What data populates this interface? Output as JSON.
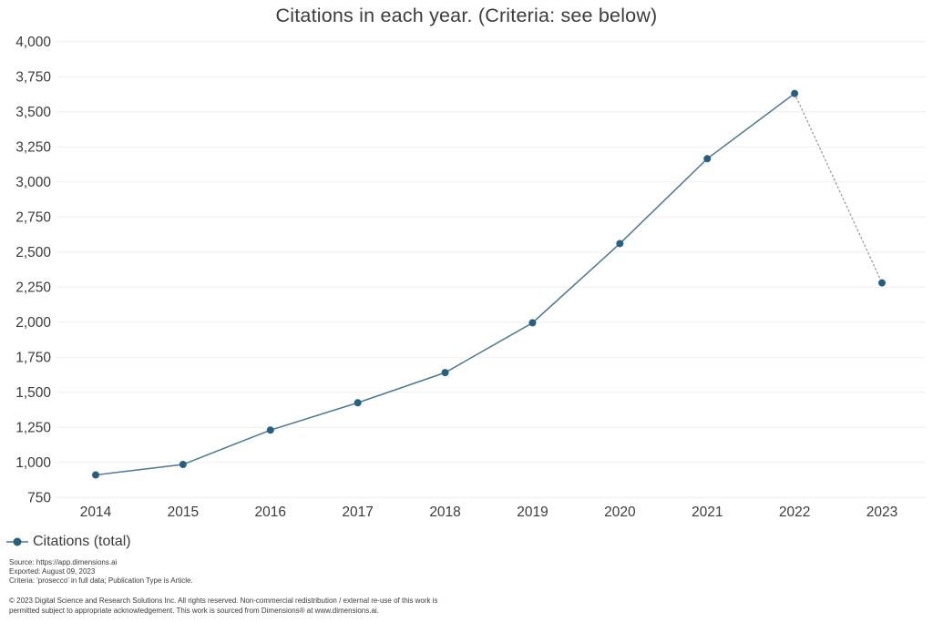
{
  "title": "Citations in each year. (Criteria: see below)",
  "legend": {
    "label": "Citations (total)"
  },
  "footer": {
    "source": "Source: https://app.dimensions.ai",
    "exported": "Exported: August 09, 2023",
    "criteria": "Criteria: 'prosecco' in full data; Publication Type is Article.",
    "copyright_line1": "© 2023 Digital Science and Research Solutions Inc. All rights reserved. Non-commercial redistribution / external re-use of this work is",
    "copyright_line2": "permitted subject to appropriate acknowledgement. This work is sourced from Dimensions® at www.dimensions.ai."
  },
  "colors": {
    "text": "#3b3b3b",
    "grid": "#efefef",
    "line": "#4d7890",
    "marker": "#2a5e7d",
    "dotted_segment": "#999999"
  },
  "chart_data": {
    "type": "line",
    "title": "Citations in each year. (Criteria: see below)",
    "xlabel": "",
    "ylabel": "",
    "x": [
      2014,
      2015,
      2016,
      2017,
      2018,
      2019,
      2020,
      2021,
      2022,
      2023
    ],
    "series": [
      {
        "name": "Citations (total)",
        "values": [
          910,
          985,
          1230,
          1425,
          1640,
          1995,
          2560,
          3165,
          3630,
          2280
        ]
      }
    ],
    "ylim": [
      750,
      4000
    ],
    "ytick_step": 250,
    "grid": "horizontal-only",
    "legend_position": "bottom-left",
    "marker": "circle",
    "last_segment_style": "dotted"
  }
}
